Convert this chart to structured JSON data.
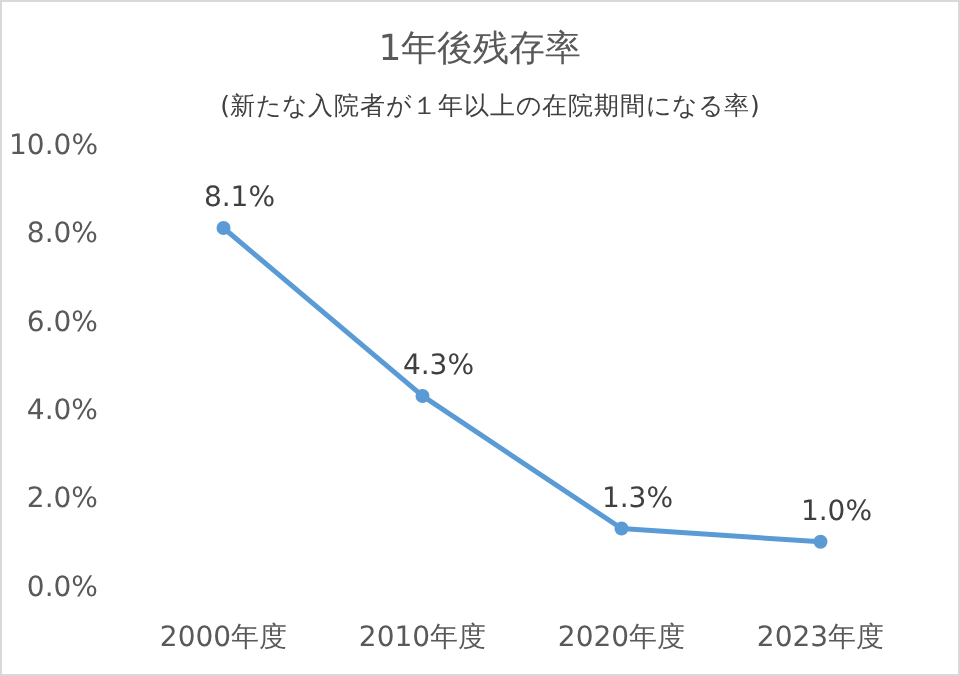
{
  "chart_data": {
    "type": "line",
    "title": "1年後残存率",
    "subtitle": "(新たな入院者が１年以上の在院期間になる率)",
    "categories": [
      "2000年度",
      "2010年度",
      "2020年度",
      "2023年度"
    ],
    "series": [
      {
        "color": "#5b9bd5",
        "values": [
          8.1,
          4.3,
          1.3,
          1.0
        ]
      }
    ],
    "ylim": [
      0,
      10
    ],
    "yticks": [
      {
        "value": 0,
        "label": "0.0%"
      },
      {
        "value": 2,
        "label": "2.0%"
      },
      {
        "value": 4,
        "label": "4.0%"
      },
      {
        "value": 6,
        "label": "6.0%"
      },
      {
        "value": 8,
        "label": "8.0%"
      },
      {
        "value": 10,
        "label": "10.0%"
      }
    ],
    "value_labels": [
      "8.1%",
      "4.3%",
      "1.3%",
      "1.0%"
    ],
    "marker": "circle"
  }
}
